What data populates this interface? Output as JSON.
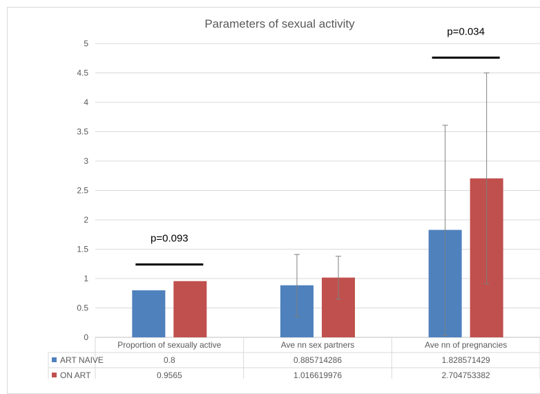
{
  "chart_data": {
    "type": "bar",
    "title": "Parameters of sexual activity",
    "categories": [
      "Proportion of sexually active",
      "Ave nn sex partners",
      "Ave nn of pregnancies"
    ],
    "series": [
      {
        "name": "ART NAIVE",
        "color": "#4f81bd",
        "values": [
          0.8,
          0.885714286,
          1.828571429
        ],
        "table_values": [
          "0.8",
          "0.885714286",
          "1.828571429"
        ],
        "error_bars": [
          null,
          [
            0.35,
            1.41
          ],
          [
            0.03,
            3.61
          ]
        ]
      },
      {
        "name": "ON ART",
        "color": "#c0504d",
        "values": [
          0.9565,
          1.016619976,
          2.704753382
        ],
        "table_values": [
          "0.9565",
          "1.016619976",
          "2.704753382"
        ],
        "error_bars": [
          null,
          [
            0.65,
            1.38
          ],
          [
            0.91,
            4.5
          ]
        ]
      }
    ],
    "ylim": [
      0,
      5
    ],
    "yticks": [
      "0",
      "0.5",
      "1",
      "1.5",
      "2",
      "2.5",
      "3",
      "3.5",
      "4",
      "4.5",
      "5"
    ],
    "grid": true,
    "legend": "data-table-below",
    "annotations": [
      {
        "text": "p=0.093",
        "category_index": 0,
        "line_y": 1.24
      },
      {
        "text": "p=0.034",
        "category_index": 2,
        "line_y": 4.76
      }
    ]
  }
}
